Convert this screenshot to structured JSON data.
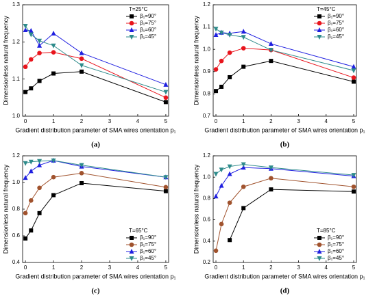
{
  "chart_data": [
    {
      "type": "line",
      "title": "T=25°C",
      "panel": "(a)",
      "x_label": "Gradient distribution parameter of SMA wires orientation p₁",
      "y_label": "Dimensionless natural frequency",
      "x": [
        0,
        0.2,
        0.5,
        1,
        2,
        5
      ],
      "xlim": [
        -0.1,
        5.1
      ],
      "xticks": [
        0,
        1,
        2,
        3,
        4,
        5
      ],
      "ylim": [
        1.0,
        1.3
      ],
      "yticks": [
        {
          "value": 1.0,
          "label": "1.0"
        },
        1.1,
        1.2,
        1.3
      ],
      "legend": "upper right",
      "series": [
        {
          "name": "β₁=90°",
          "color": "#000000",
          "marker": "square",
          "values": [
            1.065,
            1.075,
            1.095,
            1.115,
            1.12,
            1.038
          ]
        },
        {
          "name": "β₁=75°",
          "color": "#e8141c",
          "marker": "circle",
          "values": [
            1.133,
            1.153,
            1.17,
            1.172,
            1.155,
            1.05
          ]
        },
        {
          "name": "β₁=60°",
          "color": "#1f1fe0",
          "marker": "triangle",
          "values": [
            1.232,
            1.23,
            1.19,
            1.223,
            1.17,
            1.085
          ]
        },
        {
          "name": "β₁=45°",
          "color": "#2e8b8b",
          "marker": "down-triangle",
          "values": [
            1.243,
            1.22,
            1.203,
            1.19,
            1.137,
            1.065
          ]
        }
      ]
    },
    {
      "type": "line",
      "title": "T=45°C",
      "panel": "(b)",
      "x_label": "Gradient distribution parameter of SMA wires orientation p₁",
      "y_label": "Dimensionless natural frequency",
      "x": [
        0,
        0.2,
        0.5,
        1,
        2,
        5
      ],
      "xlim": [
        -0.1,
        5.1
      ],
      "xticks": [
        0,
        1,
        2,
        3,
        4,
        5
      ],
      "ylim": [
        0.7,
        1.2
      ],
      "yticks": [
        0.7,
        0.8,
        0.9,
        {
          "value": 1.0,
          "label": "1.0"
        },
        1.1,
        1.2
      ],
      "legend": "upper right",
      "series": [
        {
          "name": "β₁=90°",
          "color": "#000000",
          "marker": "square",
          "values": [
            0.813,
            0.832,
            0.875,
            0.922,
            0.948,
            0.855
          ]
        },
        {
          "name": "β₁=75°",
          "color": "#e8141c",
          "marker": "circle",
          "values": [
            0.91,
            0.948,
            0.985,
            1.005,
            0.997,
            0.873
          ]
        },
        {
          "name": "β₁=60°",
          "color": "#1f1fe0",
          "marker": "triangle",
          "values": [
            1.065,
            1.075,
            1.072,
            1.08,
            1.025,
            0.922
          ]
        },
        {
          "name": "β₁=45°",
          "color": "#2e8b8b",
          "marker": "down-triangle",
          "values": [
            1.092,
            1.075,
            1.065,
            1.055,
            0.997,
            0.905
          ]
        }
      ]
    },
    {
      "type": "line",
      "title": "T=65°C",
      "panel": "(c)",
      "x_label": "Gradient distribution parameter of SMA wires orientation p₁",
      "y_label": "Dimensionless natural frequency",
      "x": [
        0,
        0.2,
        0.5,
        1,
        2,
        5
      ],
      "xlim": [
        -0.1,
        5.1
      ],
      "xticks": [
        0,
        1,
        2,
        3,
        4,
        5
      ],
      "ylim": [
        0.4,
        1.2
      ],
      "yticks": [
        0.4,
        0.6,
        0.8,
        {
          "value": 1.0,
          "label": "1.0"
        },
        1.2
      ],
      "legend": "lower right",
      "series": [
        {
          "name": "β₁=90°",
          "color": "#000000",
          "marker": "square",
          "values": [
            0.58,
            0.64,
            0.77,
            0.905,
            0.995,
            0.935
          ]
        },
        {
          "name": "β₁=75°",
          "color": "#a0522d",
          "marker": "circle",
          "values": [
            0.77,
            0.865,
            0.96,
            1.04,
            1.07,
            0.965
          ]
        },
        {
          "name": "β₁=60°",
          "color": "#1f1fe0",
          "marker": "triangle",
          "values": [
            1.035,
            1.085,
            1.13,
            1.165,
            1.12,
            1.04
          ]
        },
        {
          "name": "β₁=45°",
          "color": "#2e8b8b",
          "marker": "down-triangle",
          "values": [
            1.145,
            1.155,
            1.16,
            1.165,
            1.13,
            1.04
          ]
        }
      ]
    },
    {
      "type": "line",
      "title": "T=85°C",
      "panel": "(d)",
      "x_label": "Gradient distribution parameter of SMA wires orientation p₁",
      "y_label": "Dimensionless natural frequency",
      "x": [
        0,
        0.2,
        0.5,
        1,
        2,
        5
      ],
      "xlim": [
        -0.1,
        5.1
      ],
      "xticks": [
        0,
        1,
        2,
        3,
        4,
        5
      ],
      "ylim": [
        0.2,
        1.2
      ],
      "yticks": [
        0.2,
        0.4,
        0.6,
        0.8,
        {
          "value": 1.0,
          "label": "1.0"
        },
        1.2
      ],
      "legend": "lower right",
      "series": [
        {
          "name": "β₁=90°",
          "color": "#000000",
          "marker": "square",
          "values": [
            null,
            null,
            0.41,
            0.71,
            0.885,
            0.865
          ]
        },
        {
          "name": "β₁=75°",
          "color": "#a0522d",
          "marker": "circle",
          "values": [
            0.31,
            0.56,
            0.76,
            0.91,
            0.99,
            0.91
          ]
        },
        {
          "name": "β₁=60°",
          "color": "#1f1fe0",
          "marker": "triangle",
          "values": [
            0.82,
            0.92,
            1.03,
            1.09,
            1.08,
            1.01
          ]
        },
        {
          "name": "β₁=45°",
          "color": "#2e8b8b",
          "marker": "down-triangle",
          "values": [
            1.03,
            1.07,
            1.1,
            1.12,
            1.09,
            1.02
          ]
        }
      ]
    }
  ]
}
